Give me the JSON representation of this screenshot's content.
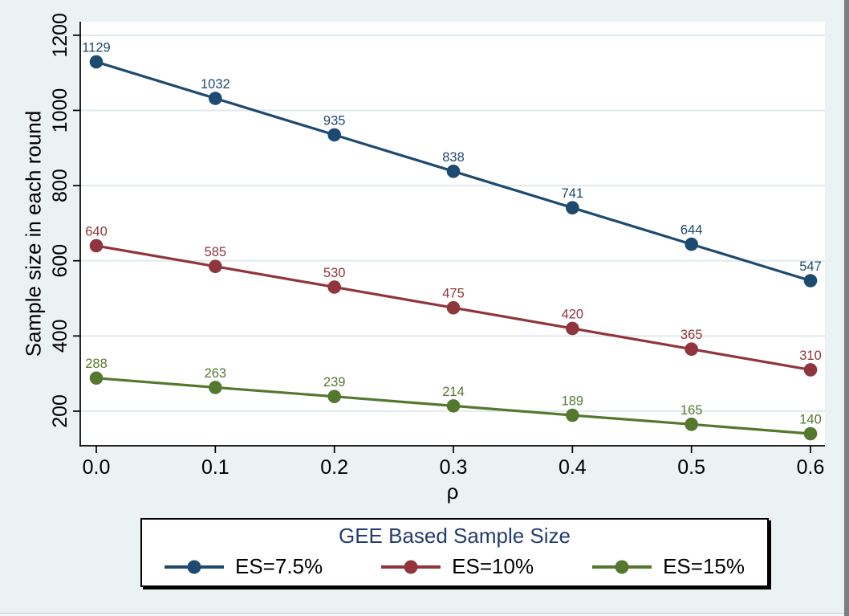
{
  "window": {
    "background_color": "#eaf2f3",
    "plot_background_color": "#ffffff",
    "gridline_color": "#e0eaec",
    "axis_color": "#000000",
    "frame_bar_color": "#7b7f80",
    "legend_title_color": "#243d70"
  },
  "chart_data": {
    "type": "line",
    "legend_title": "GEE Based Sample Size",
    "legend_position": "bottom",
    "xlabel": "ρ",
    "ylabel": "Sample size in each round",
    "x": [
      0.0,
      0.1,
      0.2,
      0.3,
      0.4,
      0.5,
      0.6
    ],
    "x_tick_labels": [
      "0.0",
      "0.1",
      "0.2",
      "0.3",
      "0.4",
      "0.5",
      "0.6"
    ],
    "y_ticks": [
      200,
      400,
      600,
      800,
      1000,
      1200
    ],
    "y_tick_labels": [
      "200",
      "400",
      "600",
      "800",
      "1000",
      "1200"
    ],
    "xlim": [
      0.0,
      0.6
    ],
    "ylim": [
      108,
      1236
    ],
    "grid": true,
    "markers": "filled-circle",
    "point_labels_visible": true,
    "series": [
      {
        "name": "ES=7.5%",
        "color": "#1c4a70",
        "values": [
          1129,
          1032,
          935,
          838,
          741,
          644,
          547
        ]
      },
      {
        "name": "ES=10%",
        "color": "#90353b",
        "values": [
          640,
          585,
          530,
          475,
          420,
          365,
          310
        ]
      },
      {
        "name": "ES=15%",
        "color": "#55782f",
        "values": [
          288,
          263,
          239,
          214,
          189,
          165,
          140
        ]
      }
    ]
  }
}
